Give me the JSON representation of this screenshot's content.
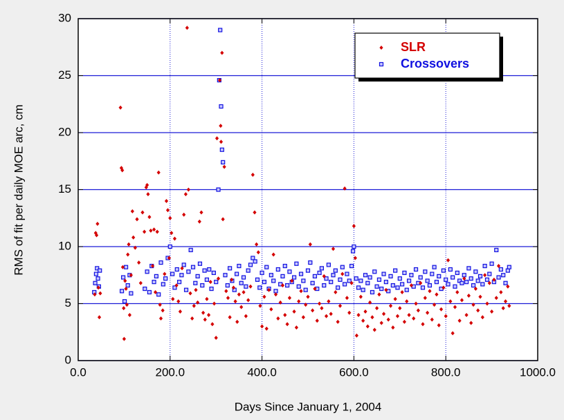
{
  "chart_data": {
    "type": "scatter",
    "xlabel": "Days Since January 1, 2004",
    "ylabel": "RMS of fit per daily MOE arc, cm",
    "xlim": [
      0,
      1000
    ],
    "xticks": [
      {
        "value": 0,
        "label": "0.0"
      },
      {
        "value": 200,
        "label": "200.0"
      },
      {
        "value": 400,
        "label": "400.0"
      },
      {
        "value": 600,
        "label": "600.0"
      },
      {
        "value": 800,
        "label": "800.0"
      },
      {
        "value": 1000,
        "label": "1000.0"
      }
    ],
    "ylim": [
      0,
      30
    ],
    "yticks": [
      0,
      5,
      10,
      15,
      20,
      25,
      30
    ],
    "grid": true,
    "grid_color": "#1a1ad6",
    "legend": "upper right",
    "series": [
      {
        "name": "SLR",
        "color": "#d40000",
        "x": [
          36,
          38,
          40,
          42,
          44,
          46,
          48,
          92,
          94,
          96,
          97,
          99,
          100,
          102,
          104,
          106,
          108,
          110,
          112,
          115,
          118,
          120,
          124,
          128,
          132,
          136,
          140,
          144,
          148,
          150,
          152,
          155,
          158,
          162,
          165,
          168,
          172,
          175,
          178,
          180,
          184,
          188,
          192,
          195,
          198,
          200,
          203,
          206,
          210,
          214,
          218,
          222,
          226,
          230,
          234,
          237,
          240,
          244,
          248,
          252,
          256,
          260,
          264,
          268,
          272,
          276,
          280,
          284,
          288,
          292,
          296,
          300,
          302,
          305,
          308,
          310,
          311,
          313,
          315,
          318,
          322,
          326,
          330,
          334,
          338,
          342,
          346,
          350,
          355,
          360,
          365,
          370,
          375,
          380,
          384,
          388,
          392,
          396,
          400,
          405,
          410,
          415,
          420,
          425,
          430,
          435,
          440,
          445,
          450,
          455,
          460,
          465,
          470,
          475,
          480,
          485,
          490,
          495,
          500,
          505,
          510,
          515,
          520,
          525,
          530,
          535,
          540,
          545,
          550,
          555,
          560,
          565,
          570,
          575,
          580,
          585,
          590,
          595,
          600,
          603,
          606,
          610,
          615,
          620,
          625,
          630,
          635,
          640,
          645,
          650,
          655,
          660,
          665,
          670,
          675,
          680,
          685,
          690,
          695,
          700,
          705,
          710,
          715,
          720,
          725,
          730,
          735,
          740,
          745,
          750,
          755,
          760,
          765,
          770,
          775,
          780,
          785,
          790,
          795,
          800,
          805,
          810,
          815,
          820,
          825,
          830,
          835,
          840,
          845,
          850,
          855,
          860,
          865,
          870,
          875,
          880,
          885,
          890,
          895,
          900,
          905,
          910,
          915,
          920,
          925,
          930,
          935,
          938
        ],
        "values": [
          5.8,
          11.2,
          11.0,
          12.0,
          6.4,
          3.8,
          5.9,
          22.2,
          16.9,
          16.7,
          8.2,
          4.6,
          1.9,
          7.0,
          6.3,
          4.9,
          9.3,
          10.2,
          4.0,
          7.5,
          13.1,
          10.8,
          9.9,
          12.4,
          8.6,
          6.8,
          13.0,
          11.3,
          15.2,
          15.4,
          14.6,
          12.6,
          11.4,
          8.3,
          11.5,
          6.0,
          11.3,
          16.5,
          4.9,
          3.7,
          4.4,
          7.6,
          14.0,
          13.2,
          9.0,
          12.5,
          11.2,
          5.4,
          10.7,
          6.6,
          5.2,
          4.3,
          8.1,
          12.8,
          14.6,
          29.2,
          15.0,
          5.9,
          3.7,
          4.8,
          6.2,
          5.1,
          12.2,
          13.0,
          4.2,
          3.6,
          5.4,
          4.0,
          6.9,
          3.2,
          5.0,
          2.0,
          19.5,
          7.2,
          24.6,
          20.6,
          19.2,
          27.0,
          12.4,
          17.0,
          6.1,
          5.5,
          3.8,
          7.1,
          6.4,
          5.2,
          3.4,
          5.8,
          4.7,
          6.0,
          3.9,
          5.3,
          6.5,
          16.3,
          13.0,
          10.2,
          9.5,
          4.8,
          3.0,
          5.6,
          2.8,
          6.2,
          4.5,
          9.3,
          5.8,
          3.7,
          5.1,
          6.6,
          4.0,
          3.2,
          5.5,
          7.0,
          4.3,
          2.9,
          5.2,
          6.1,
          3.8,
          4.9,
          5.6,
          10.2,
          4.4,
          6.3,
          3.5,
          5.0,
          4.6,
          7.4,
          3.9,
          5.2,
          4.1,
          9.8,
          6.0,
          3.4,
          4.8,
          7.6,
          15.1,
          5.5,
          4.2,
          6.8,
          11.8,
          9.0,
          2.2,
          4.0,
          5.6,
          3.5,
          4.3,
          3.0,
          5.1,
          3.8,
          2.7,
          4.6,
          5.8,
          3.3,
          4.1,
          6.2,
          3.6,
          4.8,
          2.9,
          5.4,
          3.9,
          4.6,
          6.0,
          3.4,
          5.2,
          4.0,
          6.6,
          3.7,
          5.0,
          4.4,
          6.8,
          3.2,
          5.5,
          4.2,
          6.1,
          3.6,
          4.9,
          5.8,
          3.1,
          4.5,
          6.4,
          3.9,
          8.8,
          5.2,
          2.4,
          4.7,
          6.0,
          3.5,
          5.3,
          7.2,
          4.0,
          5.7,
          3.3,
          4.9,
          6.3,
          4.4,
          5.6,
          3.8,
          7.5,
          5.0,
          6.8,
          4.3,
          7.1,
          5.5,
          8.3,
          6.0,
          4.6,
          5.2,
          6.5,
          4.8
        ]
      },
      {
        "name": "Crossovers",
        "color": "#1010e0",
        "x": [
          35,
          37,
          39,
          41,
          43,
          45,
          47,
          95,
          98,
          101,
          104,
          108,
          112,
          115,
          145,
          150,
          155,
          160,
          165,
          170,
          175,
          180,
          185,
          190,
          195,
          200,
          205,
          210,
          215,
          220,
          225,
          230,
          235,
          240,
          245,
          250,
          255,
          260,
          265,
          270,
          275,
          280,
          285,
          290,
          295,
          300,
          305,
          307,
          309,
          311,
          313,
          315,
          320,
          325,
          330,
          335,
          340,
          345,
          350,
          355,
          360,
          365,
          370,
          375,
          380,
          385,
          390,
          395,
          400,
          405,
          410,
          415,
          420,
          425,
          430,
          435,
          440,
          445,
          450,
          455,
          460,
          465,
          470,
          475,
          480,
          485,
          490,
          495,
          500,
          505,
          510,
          515,
          520,
          525,
          530,
          535,
          540,
          545,
          550,
          555,
          560,
          565,
          570,
          575,
          580,
          585,
          590,
          595,
          598,
          600,
          605,
          610,
          615,
          620,
          625,
          630,
          635,
          640,
          645,
          650,
          655,
          660,
          665,
          670,
          675,
          680,
          685,
          690,
          695,
          700,
          705,
          710,
          715,
          720,
          725,
          730,
          735,
          740,
          745,
          750,
          755,
          760,
          765,
          770,
          775,
          780,
          785,
          790,
          795,
          800,
          805,
          810,
          815,
          820,
          825,
          830,
          835,
          840,
          845,
          850,
          855,
          860,
          865,
          870,
          875,
          880,
          885,
          890,
          895,
          900,
          905,
          910,
          915,
          920,
          925,
          930,
          935,
          938
        ],
        "values": [
          6.0,
          6.8,
          7.6,
          8.1,
          7.2,
          6.5,
          7.9,
          6.1,
          7.3,
          5.2,
          8.2,
          6.6,
          7.5,
          5.9,
          6.3,
          7.8,
          6.0,
          8.3,
          6.9,
          7.4,
          5.8,
          8.6,
          6.7,
          7.2,
          9.0,
          10.0,
          7.6,
          6.4,
          8.0,
          6.9,
          7.5,
          8.4,
          6.2,
          7.8,
          9.7,
          8.2,
          6.8,
          7.4,
          8.5,
          6.6,
          7.9,
          7.1,
          8.0,
          6.3,
          7.7,
          6.9,
          15.0,
          24.6,
          29.0,
          22.3,
          18.5,
          17.4,
          7.5,
          6.6,
          8.1,
          7.0,
          6.2,
          7.6,
          8.3,
          6.8,
          7.3,
          6.5,
          7.9,
          8.4,
          9.0,
          8.7,
          7.1,
          6.4,
          7.7,
          6.9,
          8.2,
          6.3,
          7.5,
          7.0,
          6.1,
          8.0,
          6.7,
          7.4,
          8.3,
          6.6,
          7.8,
          6.9,
          7.3,
          8.5,
          6.5,
          7.6,
          7.0,
          6.2,
          7.9,
          8.6,
          6.8,
          7.4,
          6.3,
          7.7,
          8.1,
          6.6,
          7.2,
          8.4,
          6.9,
          7.5,
          7.9,
          6.4,
          7.1,
          8.2,
          6.7,
          7.6,
          7.0,
          8.3,
          9.6,
          10.0,
          7.2,
          6.4,
          7.0,
          6.2,
          7.5,
          6.8,
          7.3,
          6.0,
          7.8,
          6.5,
          7.1,
          6.3,
          7.6,
          6.9,
          6.1,
          7.4,
          6.6,
          7.9,
          6.4,
          7.2,
          6.7,
          7.7,
          6.2,
          7.0,
          7.5,
          6.5,
          8.0,
          6.8,
          7.3,
          6.4,
          7.8,
          7.0,
          6.6,
          7.6,
          8.2,
          6.9,
          7.4,
          6.3,
          7.9,
          7.1,
          6.7,
          8.0,
          7.3,
          6.5,
          7.7,
          7.0,
          6.8,
          7.5,
          6.9,
          8.1,
          7.2,
          6.6,
          7.8,
          7.0,
          7.4,
          6.7,
          8.3,
          7.1,
          7.6,
          8.5,
          6.9,
          9.7,
          7.3,
          8.0,
          7.5,
          6.8,
          7.9,
          8.2
        ]
      }
    ]
  }
}
